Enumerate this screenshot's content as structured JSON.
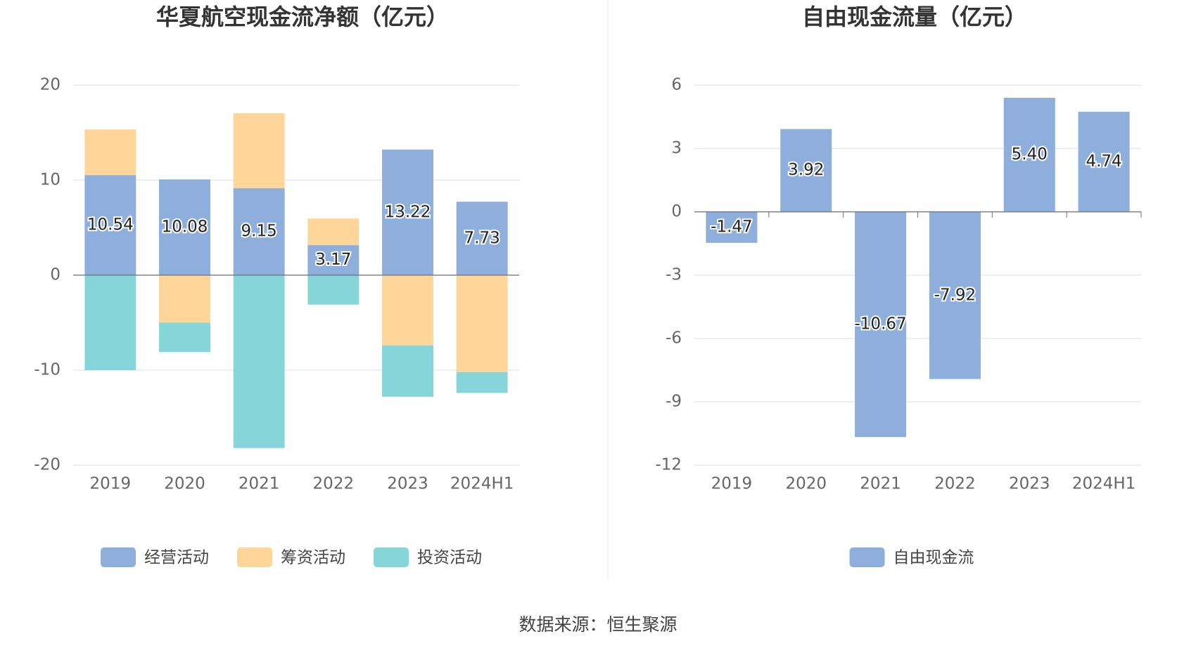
{
  "chart_data": [
    {
      "type": "bar",
      "title": "华夏航空现金流净额（亿元）",
      "stacked": true,
      "categories": [
        "2019",
        "2020",
        "2021",
        "2022",
        "2023",
        "2024H1"
      ],
      "series": [
        {
          "name": "经营活动",
          "color": "#8eaedb",
          "values": [
            10.54,
            10.08,
            9.15,
            3.17,
            13.22,
            7.73
          ],
          "value_labels": [
            "10.54",
            "10.08",
            "9.15",
            "3.17",
            "13.22",
            "7.73"
          ]
        },
        {
          "name": "筹资活动",
          "color": "#ffd699",
          "values": [
            4.8,
            -5.0,
            7.9,
            2.8,
            -7.4,
            -10.2
          ]
        },
        {
          "name": "投资活动",
          "color": "#86d6d9",
          "values": [
            -10.0,
            -3.1,
            -18.2,
            -3.1,
            -5.4,
            -2.2
          ]
        }
      ],
      "ylim": [
        -20,
        20
      ],
      "yticks": [
        -20,
        -10,
        0,
        10,
        20
      ],
      "grid": true
    },
    {
      "type": "bar",
      "title": "自由现金流量（亿元）",
      "stacked": false,
      "categories": [
        "2019",
        "2020",
        "2021",
        "2022",
        "2023",
        "2024H1"
      ],
      "series": [
        {
          "name": "自由现金流",
          "color": "#8eaedb",
          "values": [
            -1.47,
            3.92,
            -10.67,
            -7.92,
            5.4,
            4.74
          ],
          "value_labels": [
            "-1.47",
            "3.92",
            "-10.67",
            "-7.92",
            "5.40",
            "4.74"
          ]
        }
      ],
      "ylim": [
        -12,
        6
      ],
      "yticks": [
        -12,
        -9,
        -6,
        -3,
        0,
        3,
        6
      ],
      "grid": true
    }
  ],
  "source": "数据来源：恒生聚源"
}
